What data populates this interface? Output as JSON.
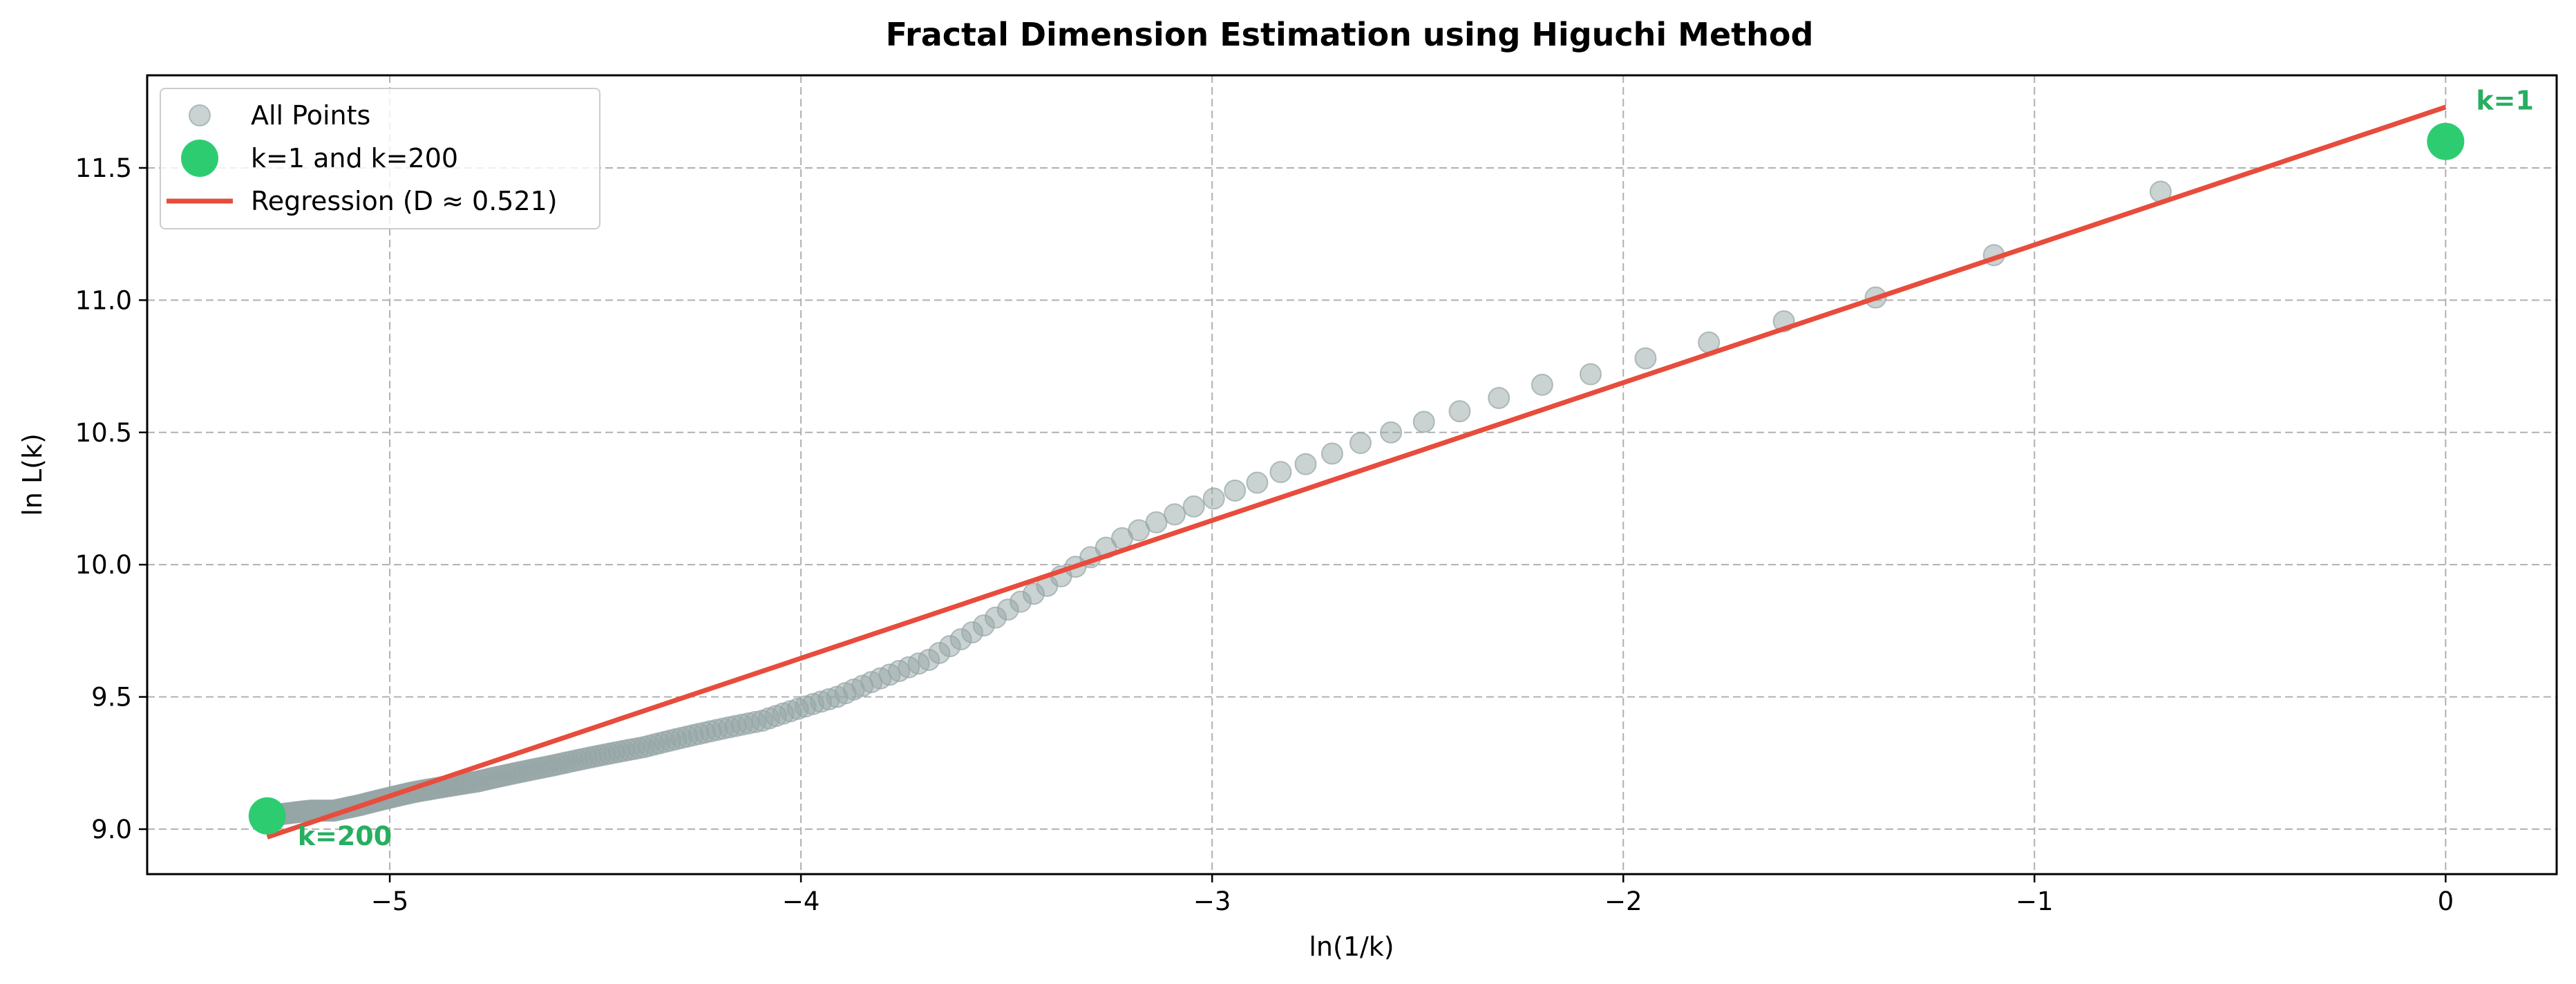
{
  "chart_data": {
    "type": "scatter",
    "title": "Fractal Dimension Estimation using Higuchi Method",
    "xlabel": "ln(1/k)",
    "ylabel": "ln L(k)",
    "xlim": [
      -5.59,
      0.27
    ],
    "ylim": [
      8.83,
      11.85
    ],
    "xticks": [
      -5,
      -4,
      -3,
      -2,
      -1,
      0
    ],
    "xtick_labels": [
      "−5",
      "−4",
      "−3",
      "−2",
      "−1",
      "0"
    ],
    "yticks": [
      9.0,
      9.5,
      10.0,
      10.5,
      11.0,
      11.5
    ],
    "ytick_labels": [
      "9.0",
      "9.5",
      "10.0",
      "10.5",
      "11.0",
      "11.5"
    ],
    "grid": true,
    "legend_position": "top-left",
    "colors": {
      "points": "#95a5a6",
      "highlight": "#2ecc71",
      "regression": "#e74c3c",
      "annotation": "#27ae60"
    },
    "series": [
      {
        "name": "All Points",
        "kind": "scatter",
        "curve_k": [
          1,
          2,
          3,
          4,
          5,
          6,
          7,
          8,
          9,
          10,
          11,
          12,
          13,
          14,
          15,
          16,
          17,
          18,
          19,
          20,
          25,
          30,
          35,
          40,
          50,
          60,
          80,
          100,
          120,
          140,
          160,
          170,
          180,
          190,
          200
        ],
        "curve_y": [
          11.6,
          11.41,
          11.17,
          11.01,
          10.92,
          10.84,
          10.78,
          10.72,
          10.68,
          10.63,
          10.58,
          10.54,
          10.5,
          10.46,
          10.42,
          10.38,
          10.35,
          10.31,
          10.28,
          10.25,
          10.1,
          9.92,
          9.77,
          9.64,
          9.5,
          9.41,
          9.31,
          9.24,
          9.18,
          9.14,
          9.09,
          9.07,
          9.07,
          9.06,
          9.05
        ]
      },
      {
        "name": "k=1 and k=200",
        "kind": "highlight",
        "x": [
          0,
          -5.298
        ],
        "y": [
          11.6,
          9.05
        ]
      },
      {
        "name": "Regression (D ≈ 0.521)",
        "kind": "line",
        "x": [
          -5.298,
          0
        ],
        "y": [
          8.97,
          11.73
        ]
      }
    ],
    "annotations": [
      {
        "text": "k=1",
        "x": 0,
        "y": 11.6
      },
      {
        "text": "k=200",
        "x": -5.298,
        "y": 9.05
      }
    ]
  }
}
